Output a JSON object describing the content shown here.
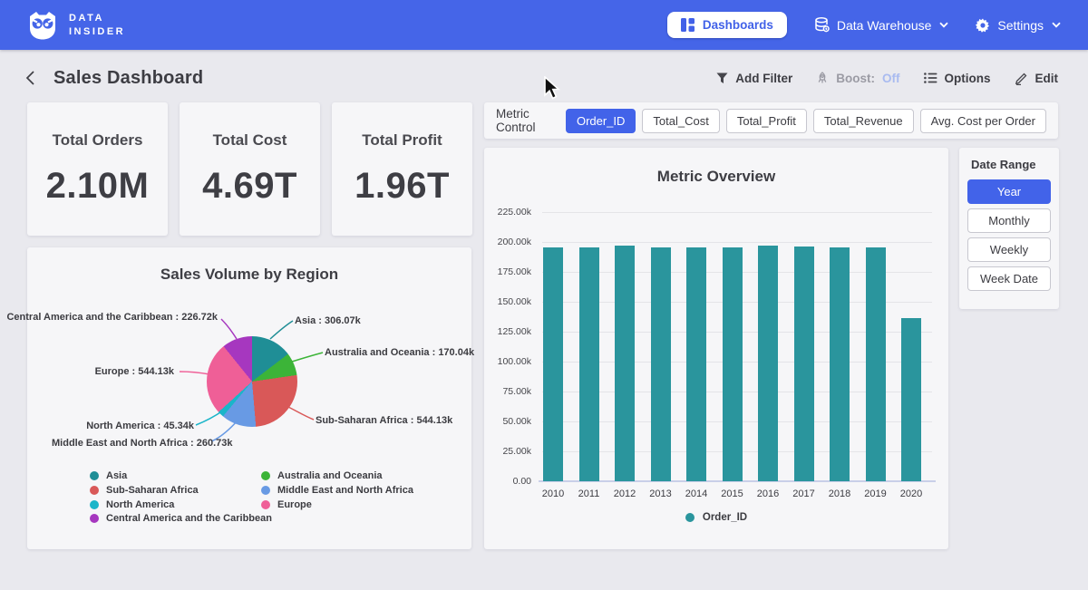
{
  "brand": {
    "line1": "DATA",
    "line2": "INSIDER"
  },
  "nav": {
    "dashboards": "Dashboards",
    "data_warehouse": "Data Warehouse",
    "settings": "Settings"
  },
  "header": {
    "title": "Sales Dashboard",
    "add_filter": "Add Filter",
    "boost_label": "Boost:",
    "boost_state": "Off",
    "options": "Options",
    "edit": "Edit"
  },
  "kpis": [
    {
      "label": "Total Orders",
      "value": "2.10M"
    },
    {
      "label": "Total Cost",
      "value": "4.69T"
    },
    {
      "label": "Total Profit",
      "value": "1.96T"
    }
  ],
  "metric_control": {
    "label": "Metric Control",
    "options": [
      {
        "label": "Order_ID",
        "active": true
      },
      {
        "label": "Total_Cost",
        "active": false
      },
      {
        "label": "Total_Profit",
        "active": false
      },
      {
        "label": "Total_Revenue",
        "active": false
      },
      {
        "label": "Avg. Cost per Order",
        "active": false
      }
    ]
  },
  "date_range": {
    "label": "Date Range",
    "options": [
      {
        "label": "Year",
        "active": true
      },
      {
        "label": "Monthly",
        "active": false
      },
      {
        "label": "Weekly",
        "active": false
      },
      {
        "label": "Week Date",
        "active": false
      }
    ]
  },
  "colors": {
    "nav_blue": "#4565e8",
    "accent_blue": "#4263e9",
    "bar_teal": "#2a959d",
    "boost_off": "#a9bbf0"
  },
  "chart_data": [
    {
      "type": "pie",
      "title": "Sales Volume by Region",
      "unit": "k orders",
      "direction": "clockwise",
      "start_angle_deg": 0,
      "slices": [
        {
          "label": "Asia",
          "value": 306.07,
          "display": "306.07k",
          "color": "#1f8e96"
        },
        {
          "label": "Australia and Oceania",
          "value": 170.04,
          "display": "170.04k",
          "color": "#3cb438"
        },
        {
          "label": "Sub-Saharan Africa",
          "value": 544.13,
          "display": "544.13k",
          "color": "#d95858"
        },
        {
          "label": "Middle East and North Africa",
          "value": 260.73,
          "display": "260.73k",
          "color": "#689ae4"
        },
        {
          "label": "North America",
          "value": 45.34,
          "display": "45.34k",
          "color": "#1ab5c9"
        },
        {
          "label": "Europe",
          "value": 544.13,
          "display": "544.13k",
          "color": "#ef5f97"
        },
        {
          "label": "Central America and the Caribbean",
          "value": 226.72,
          "display": "226.72k",
          "color": "#a637bf"
        }
      ],
      "legend_columns": [
        [
          "Asia",
          "Sub-Saharan Africa",
          "North America",
          "Central America and the Caribbean"
        ],
        [
          "Australia and Oceania",
          "Middle East and North Africa",
          "Europe"
        ]
      ],
      "legend_position": "bottom"
    },
    {
      "type": "bar",
      "title": "Metric Overview",
      "categories": [
        "2010",
        "2011",
        "2012",
        "2013",
        "2014",
        "2015",
        "2016",
        "2017",
        "2018",
        "2019",
        "2020"
      ],
      "series": [
        {
          "name": "Order_ID",
          "color": "#2a959d",
          "values_k": [
            195.5,
            195.3,
            196.9,
            195.6,
            195.4,
            195.5,
            196.8,
            195.9,
            195.3,
            195.8,
            136.4
          ]
        }
      ],
      "ylim_k": [
        0,
        225
      ],
      "yticks_k": [
        0,
        25,
        50,
        75,
        100,
        125,
        150,
        175,
        200,
        225
      ],
      "ytick_labels": [
        "0.00",
        "25.00k",
        "50.00k",
        "75.00k",
        "100.00k",
        "125.00k",
        "150.00k",
        "175.00k",
        "200.00k",
        "225.00k"
      ],
      "grid": true,
      "legend_position": "bottom"
    }
  ]
}
